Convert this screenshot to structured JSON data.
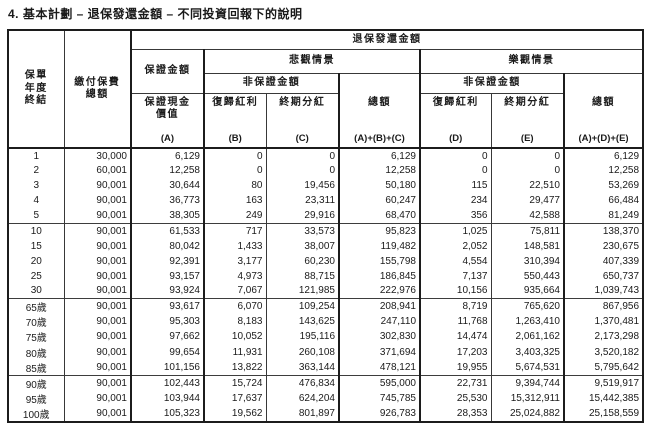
{
  "title": "4. 基本計劃 – 退保發還金額 – 不同投資回報下的說明",
  "table": {
    "header": {
      "policy_year_end": "保單\n年度\n終結",
      "total_premiums_paid": "繳付保費\n總額",
      "surrender_refund_amount": "退保發還金額",
      "guaranteed_amount": "保證金額",
      "pessimistic_scenario": "悲觀情景",
      "optimistic_scenario": "樂觀情景",
      "non_guaranteed_amount": "非保證金額",
      "guaranteed_cash_value": "保證現金\n價值",
      "reversionary_bonus": "復歸紅利",
      "terminal_dividend": "終期分紅",
      "total": "總額",
      "formula_a": "(A)",
      "formula_b": "(B)",
      "formula_c": "(C)",
      "formula_abc": "(A)+(B)+(C)",
      "formula_d": "(D)",
      "formula_e": "(E)",
      "formula_ade": "(A)+(D)+(E)"
    },
    "columns": [
      "year",
      "premium",
      "a",
      "b",
      "c",
      "abc",
      "d",
      "e",
      "ade"
    ],
    "rows": [
      {
        "year": "1",
        "premium": "30,000",
        "a": "6,129",
        "b": "0",
        "c": "0",
        "abc": "6,129",
        "d": "0",
        "e": "0",
        "ade": "6,129",
        "group_start": false
      },
      {
        "year": "2",
        "premium": "60,001",
        "a": "12,258",
        "b": "0",
        "c": "0",
        "abc": "12,258",
        "d": "0",
        "e": "0",
        "ade": "12,258",
        "group_start": false
      },
      {
        "year": "3",
        "premium": "90,001",
        "a": "30,644",
        "b": "80",
        "c": "19,456",
        "abc": "50,180",
        "d": "115",
        "e": "22,510",
        "ade": "53,269",
        "group_start": false
      },
      {
        "year": "4",
        "premium": "90,001",
        "a": "36,773",
        "b": "163",
        "c": "23,311",
        "abc": "60,247",
        "d": "234",
        "e": "29,477",
        "ade": "66,484",
        "group_start": false
      },
      {
        "year": "5",
        "premium": "90,001",
        "a": "38,305",
        "b": "249",
        "c": "29,916",
        "abc": "68,470",
        "d": "356",
        "e": "42,588",
        "ade": "81,249",
        "group_start": false
      },
      {
        "year": "10",
        "premium": "90,001",
        "a": "61,533",
        "b": "717",
        "c": "33,573",
        "abc": "95,823",
        "d": "1,025",
        "e": "75,811",
        "ade": "138,370",
        "group_start": true
      },
      {
        "year": "15",
        "premium": "90,001",
        "a": "80,042",
        "b": "1,433",
        "c": "38,007",
        "abc": "119,482",
        "d": "2,052",
        "e": "148,581",
        "ade": "230,675",
        "group_start": false
      },
      {
        "year": "20",
        "premium": "90,001",
        "a": "92,391",
        "b": "3,177",
        "c": "60,230",
        "abc": "155,798",
        "d": "4,554",
        "e": "310,394",
        "ade": "407,339",
        "group_start": false
      },
      {
        "year": "25",
        "premium": "90,001",
        "a": "93,157",
        "b": "4,973",
        "c": "88,715",
        "abc": "186,845",
        "d": "7,137",
        "e": "550,443",
        "ade": "650,737",
        "group_start": false
      },
      {
        "year": "30",
        "premium": "90,001",
        "a": "93,924",
        "b": "7,067",
        "c": "121,985",
        "abc": "222,976",
        "d": "10,156",
        "e": "935,664",
        "ade": "1,039,743",
        "group_start": false
      },
      {
        "year": "65歲",
        "premium": "90,001",
        "a": "93,617",
        "b": "6,070",
        "c": "109,254",
        "abc": "208,941",
        "d": "8,719",
        "e": "765,620",
        "ade": "867,956",
        "group_start": true
      },
      {
        "year": "70歲",
        "premium": "90,001",
        "a": "95,303",
        "b": "8,183",
        "c": "143,625",
        "abc": "247,110",
        "d": "11,768",
        "e": "1,263,410",
        "ade": "1,370,481",
        "group_start": false
      },
      {
        "year": "75歲",
        "premium": "90,001",
        "a": "97,662",
        "b": "10,052",
        "c": "195,116",
        "abc": "302,830",
        "d": "14,474",
        "e": "2,061,162",
        "ade": "2,173,298",
        "group_start": false
      },
      {
        "year": "80歲",
        "premium": "90,001",
        "a": "99,654",
        "b": "11,931",
        "c": "260,108",
        "abc": "371,694",
        "d": "17,203",
        "e": "3,403,325",
        "ade": "3,520,182",
        "group_start": false
      },
      {
        "year": "85歲",
        "premium": "90,001",
        "a": "101,156",
        "b": "13,822",
        "c": "363,144",
        "abc": "478,121",
        "d": "19,955",
        "e": "5,674,531",
        "ade": "5,795,642",
        "group_start": false
      },
      {
        "year": "90歲",
        "premium": "90,001",
        "a": "102,443",
        "b": "15,724",
        "c": "476,834",
        "abc": "595,000",
        "d": "22,731",
        "e": "9,394,744",
        "ade": "9,519,917",
        "group_start": true
      },
      {
        "year": "95歲",
        "premium": "90,001",
        "a": "103,944",
        "b": "17,637",
        "c": "624,204",
        "abc": "745,785",
        "d": "25,530",
        "e": "15,312,911",
        "ade": "15,442,385",
        "group_start": false
      },
      {
        "year": "100歲",
        "premium": "90,001",
        "a": "105,323",
        "b": "19,562",
        "c": "801,897",
        "abc": "926,783",
        "d": "28,353",
        "e": "25,024,882",
        "ade": "25,158,559",
        "group_start": false
      }
    ]
  }
}
